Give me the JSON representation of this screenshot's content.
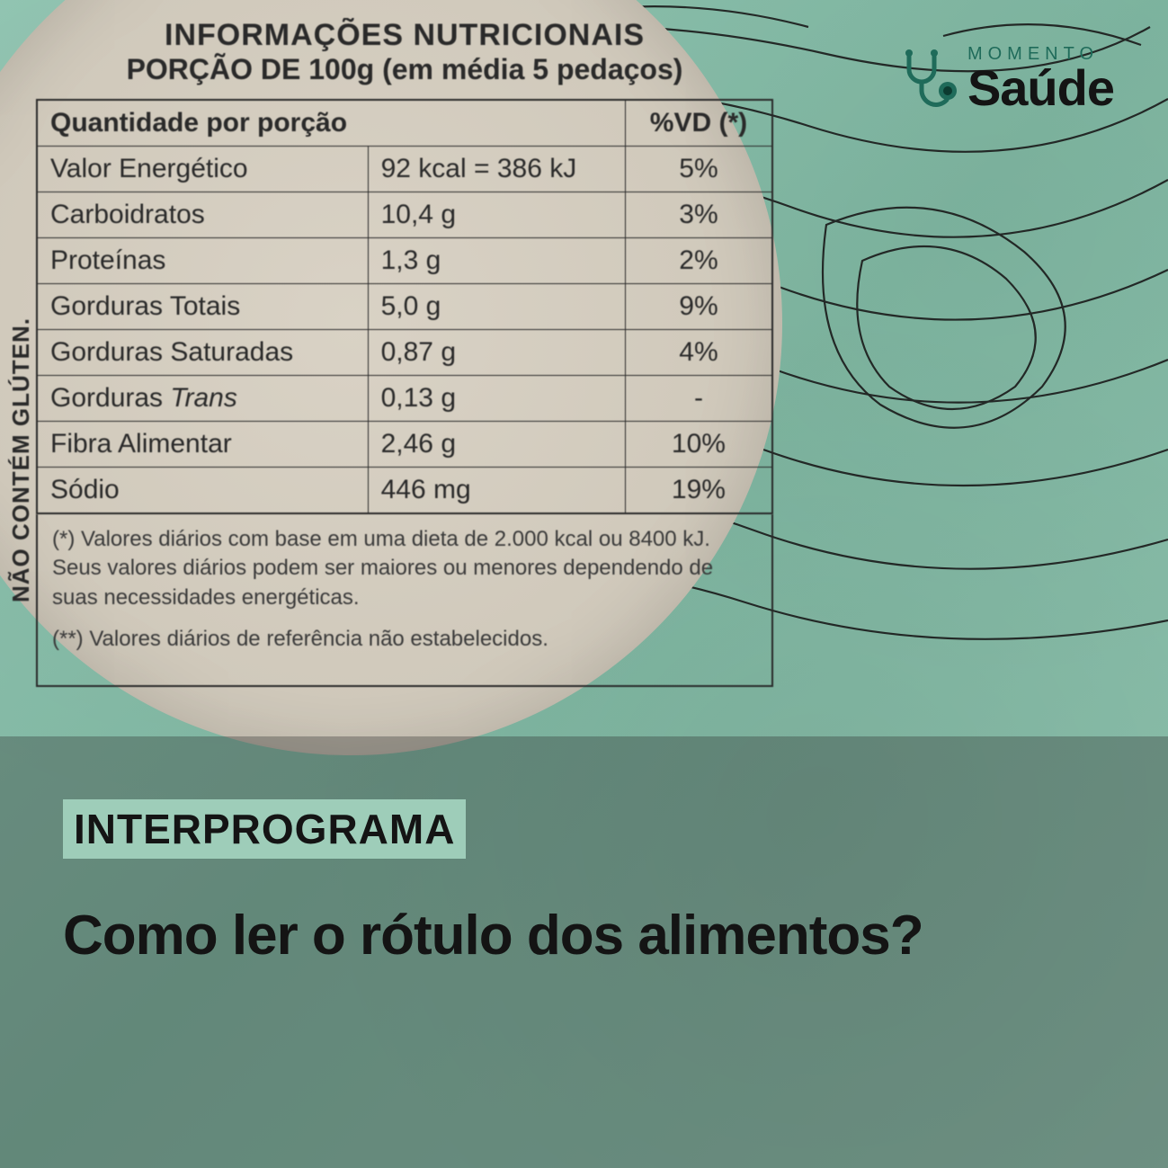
{
  "background": {
    "primary_color": "#8fc2af",
    "topo_line_color": "#1a1a1a",
    "topo_line_width": 2.2
  },
  "logo": {
    "small_text": "MOMENTO",
    "big_text": "Saúde",
    "small_color": "#1f6b5a",
    "big_color": "#141414",
    "icon_stroke": "#1f6b5a",
    "icon_fill": "#1f6b5a"
  },
  "side_label": "NÃO CONTÉM GLÚTEN.",
  "nutrition_label": {
    "title": "INFORMAÇÕES NUTRICIONAIS",
    "subtitle": "PORÇÃO DE 100g (em média 5 pedaços)",
    "header_qty": "Quantidade por porção",
    "header_vd": "%VD (*)",
    "rows": [
      {
        "name": "Valor Energético",
        "value": "92 kcal = 386 kJ",
        "vd": "5%"
      },
      {
        "name": "Carboidratos",
        "value": "10,4 g",
        "vd": "3%"
      },
      {
        "name": "Proteínas",
        "value": "1,3 g",
        "vd": "2%"
      },
      {
        "name": "Gorduras Totais",
        "value": "5,0 g",
        "vd": "9%"
      },
      {
        "name": "Gorduras Saturadas",
        "value": "0,87 g",
        "vd": "4%"
      },
      {
        "name": "Gorduras Trans",
        "value": "0,13 g",
        "vd": "-",
        "italic_last_word": true
      },
      {
        "name": "Fibra Alimentar",
        "value": "2,46 g",
        "vd": "10%"
      },
      {
        "name": "Sódio",
        "value": "446 mg",
        "vd": "19%"
      }
    ],
    "footnote1": "(*) Valores diários com base em uma dieta de 2.000 kcal ou 8400 kJ. Seus valores diários podem ser maiores ou menores dependendo de suas necessidades energéticas.",
    "footnote2": "(**) Valores diários de referência não estabelecidos.",
    "circle_bg": "#d9d2c5",
    "text_color": "#2a2a2a",
    "border_color": "#2a2a2a"
  },
  "banner": {
    "tag": "INTERPROGRAMA",
    "tag_bg": "#9ecdb9",
    "headline": "Como ler o rótulo dos alimentos?",
    "overlay_color": "rgba(40,40,40,0.32)",
    "text_color": "#141414"
  }
}
